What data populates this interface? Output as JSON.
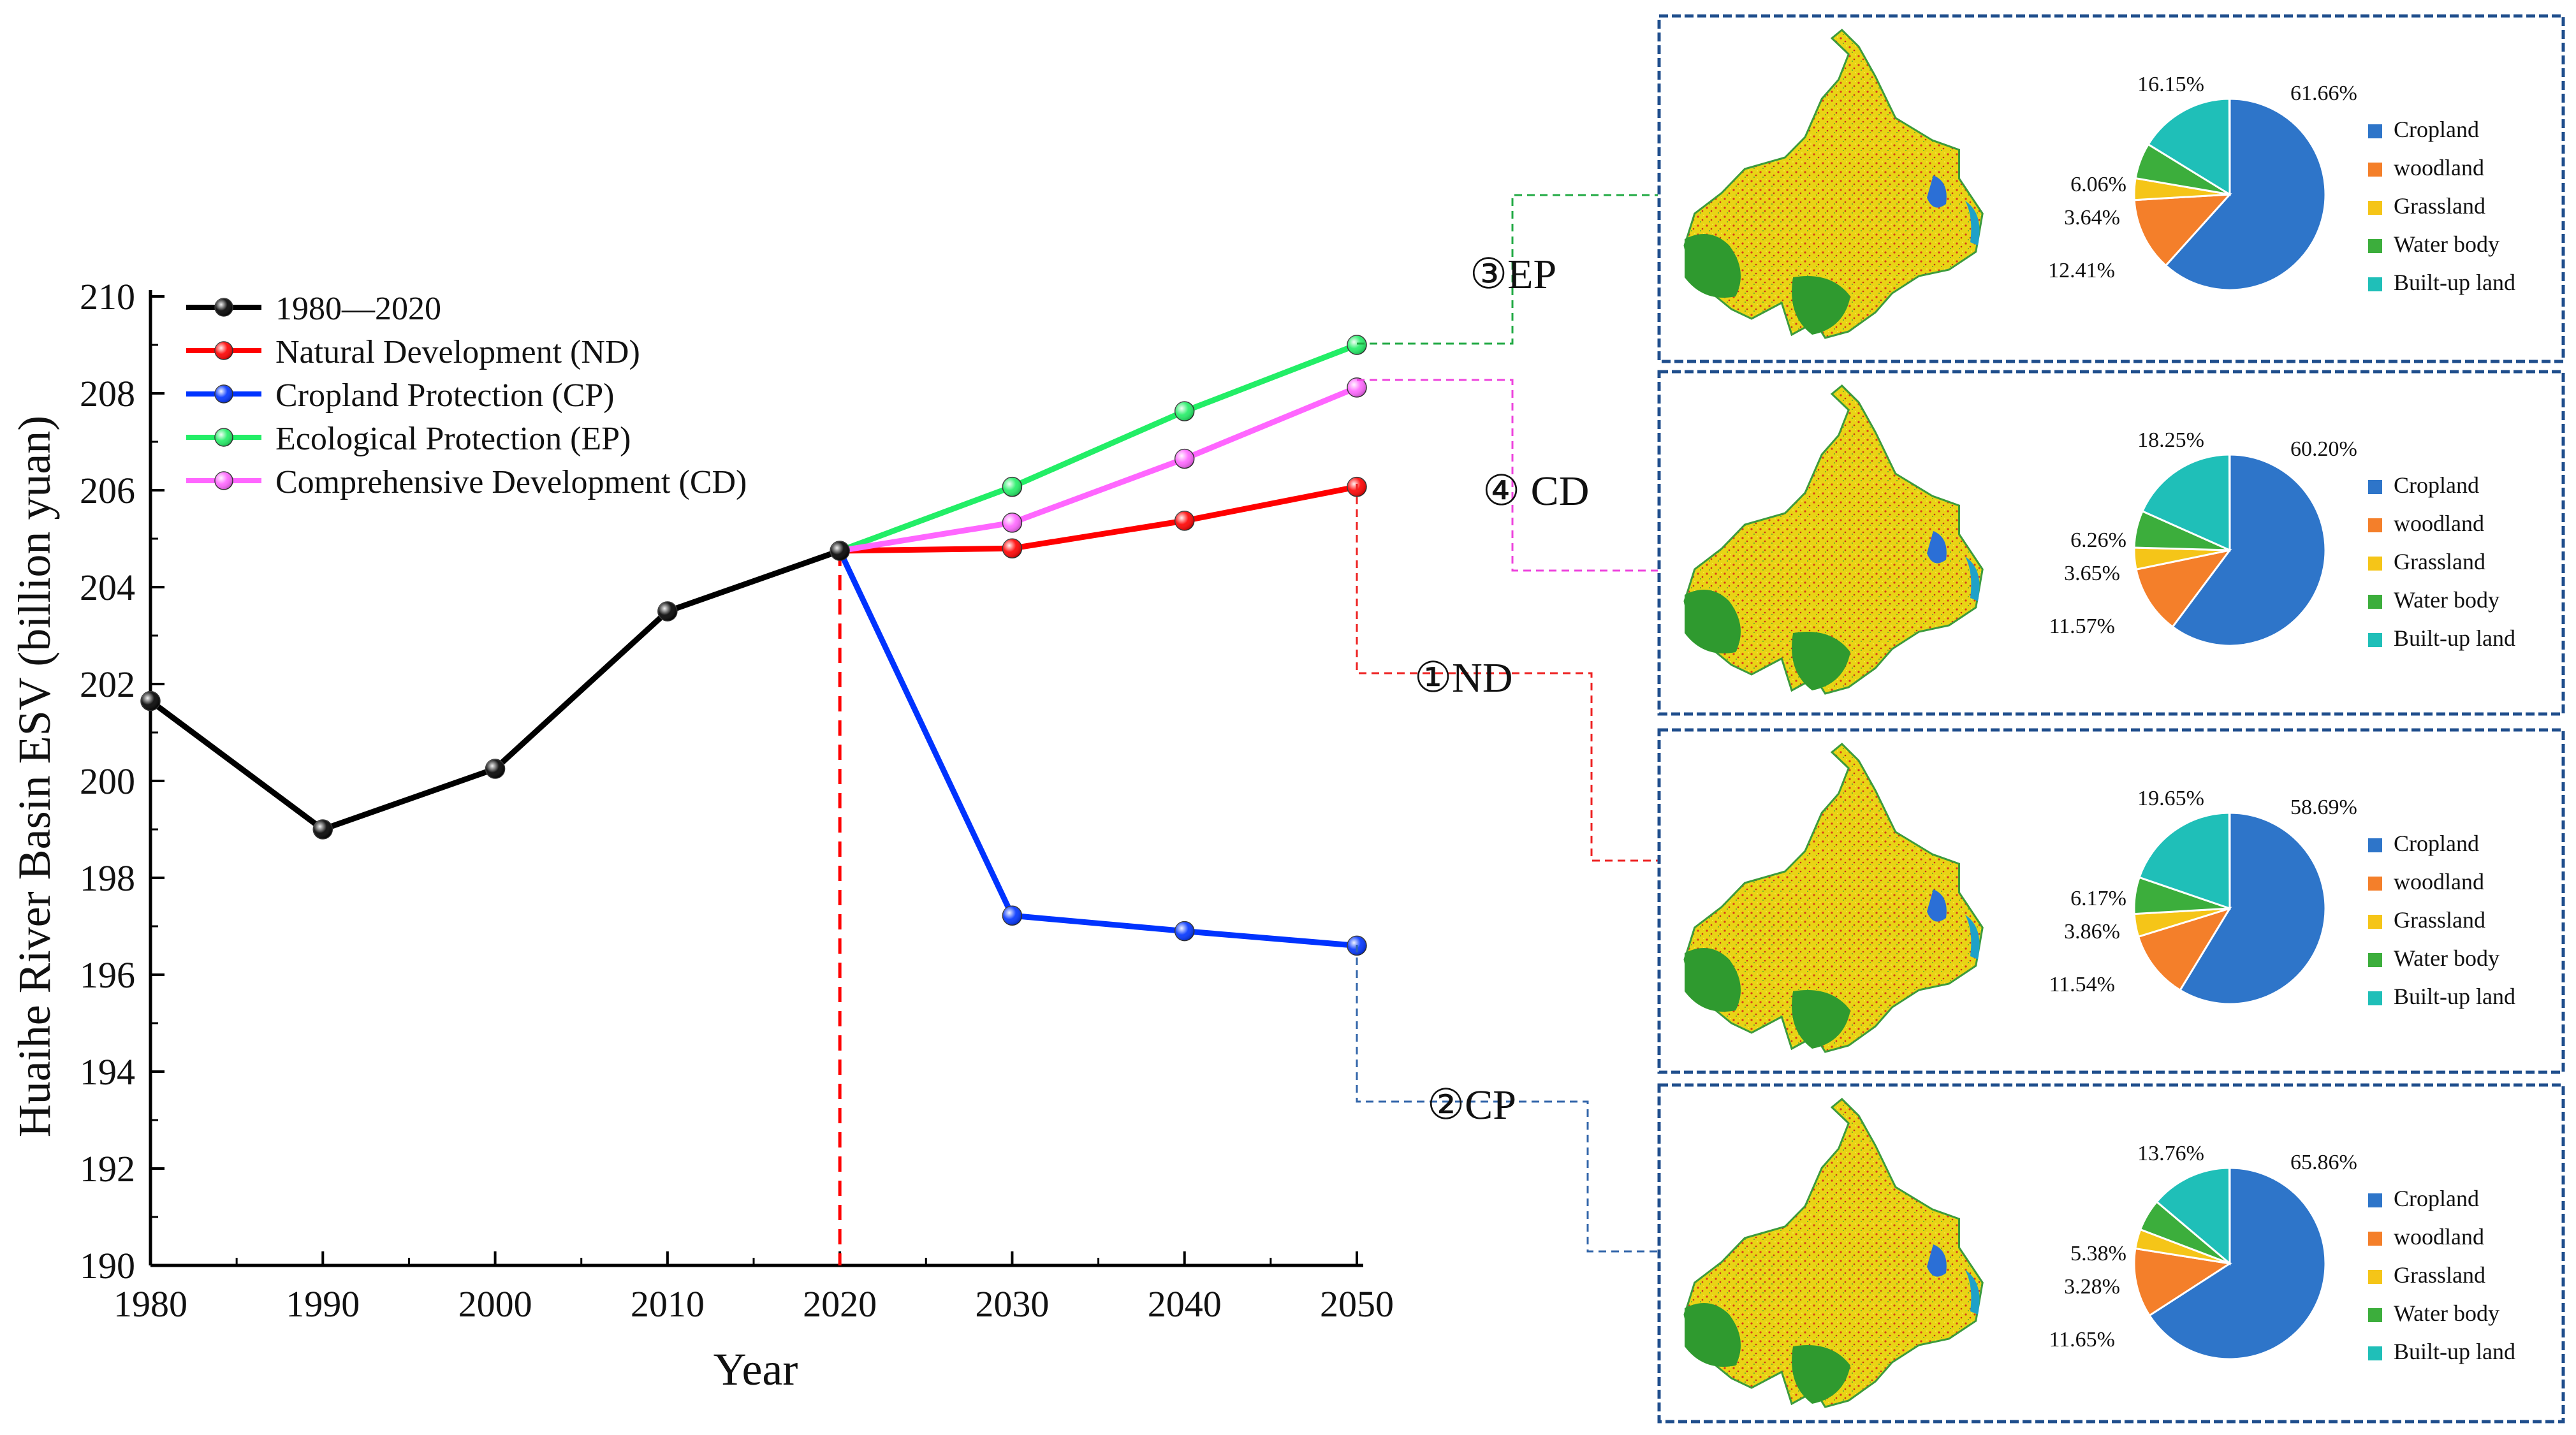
{
  "chart_data": {
    "type": "line",
    "xlabel": "Year",
    "ylabel": "Huaihe River Basin ESV (billion yuan)",
    "xlim": [
      1980,
      2050
    ],
    "ylim": [
      190,
      210
    ],
    "x_ticks": [
      "1980",
      "1990",
      "2000",
      "2010",
      "2020",
      "2030",
      "2040",
      "2050"
    ],
    "y_ticks": [
      "190",
      "192",
      "194",
      "196",
      "198",
      "200",
      "202",
      "204",
      "206",
      "208",
      "210"
    ],
    "series": [
      {
        "name": "1980—2020",
        "color": "#000000",
        "x": [
          1980,
          1990,
          2000,
          2010,
          2020
        ],
        "values": [
          201.65,
          199.0,
          200.25,
          203.5,
          204.75
        ]
      },
      {
        "name": "Natural Development (ND)",
        "color": "#ff0000",
        "x": [
          2020,
          2030,
          2040,
          2050
        ],
        "values": [
          204.75,
          204.8,
          205.37,
          206.07
        ]
      },
      {
        "name": "Cropland Protection (CP)",
        "color": "#0033ff",
        "x": [
          2020,
          2030,
          2040,
          2050
        ],
        "values": [
          204.75,
          197.22,
          196.9,
          196.6
        ]
      },
      {
        "name": "Ecological Protection (EP)",
        "color": "#22ee66",
        "x": [
          2020,
          2030,
          2040,
          2050
        ],
        "values": [
          204.75,
          206.07,
          207.63,
          209.0
        ]
      },
      {
        "name": "Comprehensive Development (CD)",
        "color": "#ff66ff",
        "x": [
          2020,
          2030,
          2040,
          2050
        ],
        "values": [
          204.75,
          205.33,
          206.65,
          208.12
        ]
      }
    ],
    "reference_line": {
      "x": 2020,
      "color": "#ff0000"
    },
    "scenario_panels": [
      {
        "label": "③EP",
        "series": "Ecological Protection (EP)",
        "connector_color": "#22aa44",
        "pie": {
          "Cropland": "61.66%",
          "woodland": "12.41%",
          "Grassland": "3.64%",
          "Water body": "6.06%",
          "Built-up land": "16.15%"
        }
      },
      {
        "label": "④ CD",
        "series": "Comprehensive Development (CD)",
        "connector_color": "#ee44dd",
        "pie": {
          "Cropland": "60.20%",
          "woodland": "11.57%",
          "Grassland": "3.65%",
          "Water body": "6.26%",
          "Built-up land": "18.25%"
        }
      },
      {
        "label": "①ND",
        "series": "Natural Development (ND)",
        "connector_color": "#ee2222",
        "pie": {
          "Cropland": "58.69%",
          "woodland": "11.54%",
          "Grassland": "3.86%",
          "Water body": "6.17%",
          "Built-up land": "19.65%"
        }
      },
      {
        "label": "②CP",
        "series": "Cropland Protection (CP)",
        "connector_color": "#3366aa",
        "pie": {
          "Cropland": "65.86%",
          "woodland": "11.65%",
          "Grassland": "3.28%",
          "Water body": "5.38%",
          "Built-up land": "13.76%"
        }
      }
    ],
    "land_classes": [
      "Cropland",
      "woodland",
      "Grassland",
      "Water body",
      "Built-up land"
    ],
    "land_colors": [
      "#2e75c9",
      "#f47f2a",
      "#f5c518",
      "#3cae3c",
      "#1fbfb8"
    ],
    "panel_border_color": "#1f4e8c"
  }
}
